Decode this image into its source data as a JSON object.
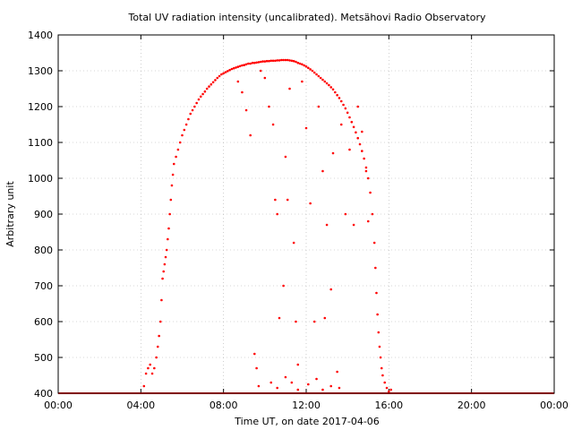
{
  "chart_data": {
    "type": "scatter",
    "title": "Total UV radiation intensity (uncalibrated). Metsähovi Radio Observatory",
    "xlabel": "Time UT, on date 2017-04-06",
    "ylabel": "Arbitrary unit",
    "xlim": [
      0,
      24
    ],
    "ylim": [
      400,
      1400
    ],
    "grid": true,
    "series_color": "#ff0000",
    "x_ticks": [
      {
        "value": 0,
        "label": "00:00"
      },
      {
        "value": 4,
        "label": "04:00"
      },
      {
        "value": 8,
        "label": "08:00"
      },
      {
        "value": 12,
        "label": "12:00"
      },
      {
        "value": 16,
        "label": "16:00"
      },
      {
        "value": 20,
        "label": "20:00"
      },
      {
        "value": 24,
        "label": "00:00"
      }
    ],
    "y_ticks": [
      {
        "value": 400,
        "label": "400"
      },
      {
        "value": 500,
        "label": "500"
      },
      {
        "value": 600,
        "label": "600"
      },
      {
        "value": 700,
        "label": "700"
      },
      {
        "value": 800,
        "label": "800"
      },
      {
        "value": 900,
        "label": "900"
      },
      {
        "value": 1000,
        "label": "1000"
      },
      {
        "value": 1100,
        "label": "1100"
      },
      {
        "value": 1200,
        "label": "1200"
      },
      {
        "value": 1300,
        "label": "1300"
      },
      {
        "value": 1400,
        "label": "1400"
      }
    ],
    "baseline": {
      "value": 400,
      "from": 0,
      "to": 24
    },
    "points": [
      [
        4.15,
        420
      ],
      [
        4.25,
        455
      ],
      [
        4.35,
        470
      ],
      [
        4.45,
        480
      ],
      [
        4.55,
        455
      ],
      [
        4.65,
        470
      ],
      [
        4.75,
        500
      ],
      [
        4.82,
        530
      ],
      [
        4.88,
        560
      ],
      [
        4.95,
        600
      ],
      [
        5.0,
        660
      ],
      [
        5.05,
        720
      ],
      [
        5.1,
        740
      ],
      [
        5.15,
        760
      ],
      [
        5.2,
        780
      ],
      [
        5.25,
        800
      ],
      [
        5.3,
        830
      ],
      [
        5.35,
        860
      ],
      [
        5.4,
        900
      ],
      [
        5.45,
        940
      ],
      [
        5.5,
        980
      ],
      [
        5.55,
        1010
      ],
      [
        5.6,
        1040
      ],
      [
        5.7,
        1060
      ],
      [
        5.8,
        1080
      ],
      [
        5.9,
        1100
      ],
      [
        6.0,
        1120
      ],
      [
        6.1,
        1135
      ],
      [
        6.2,
        1150
      ],
      [
        6.3,
        1165
      ],
      [
        6.4,
        1180
      ],
      [
        6.5,
        1190
      ],
      [
        6.6,
        1200
      ],
      [
        6.7,
        1210
      ],
      [
        6.8,
        1220
      ],
      [
        6.9,
        1228
      ],
      [
        7.0,
        1235
      ],
      [
        7.1,
        1242
      ],
      [
        7.2,
        1250
      ],
      [
        7.3,
        1256
      ],
      [
        7.4,
        1262
      ],
      [
        7.5,
        1268
      ],
      [
        7.6,
        1274
      ],
      [
        7.7,
        1280
      ],
      [
        7.8,
        1285
      ],
      [
        7.9,
        1290
      ],
      [
        8.0,
        1293
      ],
      [
        8.1,
        1296
      ],
      [
        8.2,
        1299
      ],
      [
        8.3,
        1302
      ],
      [
        8.4,
        1305
      ],
      [
        8.5,
        1307
      ],
      [
        8.6,
        1309
      ],
      [
        8.7,
        1311
      ],
      [
        8.8,
        1313
      ],
      [
        8.9,
        1315
      ],
      [
        9.0,
        1316
      ],
      [
        9.1,
        1318
      ],
      [
        9.2,
        1320
      ],
      [
        9.3,
        1320
      ],
      [
        9.4,
        1322
      ],
      [
        9.5,
        1322
      ],
      [
        9.6,
        1323
      ],
      [
        9.7,
        1324
      ],
      [
        9.8,
        1325
      ],
      [
        9.9,
        1326
      ],
      [
        10.0,
        1326
      ],
      [
        10.1,
        1327
      ],
      [
        10.2,
        1327
      ],
      [
        10.3,
        1328
      ],
      [
        10.4,
        1328
      ],
      [
        10.5,
        1328
      ],
      [
        10.6,
        1329
      ],
      [
        10.7,
        1329
      ],
      [
        10.8,
        1330
      ],
      [
        10.9,
        1330
      ],
      [
        11.0,
        1330
      ],
      [
        11.1,
        1330
      ],
      [
        11.2,
        1329
      ],
      [
        11.3,
        1328
      ],
      [
        11.4,
        1327
      ],
      [
        11.5,
        1325
      ],
      [
        11.6,
        1322
      ],
      [
        11.7,
        1320
      ],
      [
        11.8,
        1318
      ],
      [
        11.9,
        1315
      ],
      [
        12.0,
        1312
      ],
      [
        12.1,
        1308
      ],
      [
        12.2,
        1304
      ],
      [
        12.3,
        1300
      ],
      [
        12.4,
        1295
      ],
      [
        12.5,
        1290
      ],
      [
        12.6,
        1285
      ],
      [
        12.7,
        1280
      ],
      [
        12.8,
        1275
      ],
      [
        12.9,
        1270
      ],
      [
        13.0,
        1265
      ],
      [
        13.1,
        1260
      ],
      [
        13.2,
        1254
      ],
      [
        13.3,
        1248
      ],
      [
        13.4,
        1240
      ],
      [
        13.5,
        1232
      ],
      [
        13.6,
        1224
      ],
      [
        13.7,
        1215
      ],
      [
        13.8,
        1205
      ],
      [
        13.9,
        1195
      ],
      [
        14.0,
        1183
      ],
      [
        14.1,
        1170
      ],
      [
        14.2,
        1157
      ],
      [
        14.3,
        1143
      ],
      [
        14.4,
        1128
      ],
      [
        14.5,
        1112
      ],
      [
        14.6,
        1095
      ],
      [
        14.7,
        1076
      ],
      [
        14.8,
        1055
      ],
      [
        14.9,
        1030
      ],
      [
        15.0,
        1000
      ],
      [
        15.1,
        960
      ],
      [
        15.2,
        900
      ],
      [
        15.3,
        820
      ],
      [
        15.35,
        750
      ],
      [
        15.4,
        680
      ],
      [
        15.45,
        620
      ],
      [
        15.5,
        570
      ],
      [
        15.55,
        530
      ],
      [
        15.6,
        500
      ],
      [
        15.65,
        470
      ],
      [
        15.7,
        450
      ],
      [
        15.8,
        430
      ],
      [
        15.9,
        415
      ],
      [
        16.0,
        405
      ],
      [
        16.1,
        410
      ],
      [
        8.7,
        1270
      ],
      [
        8.9,
        1240
      ],
      [
        9.1,
        1190
      ],
      [
        9.3,
        1120
      ],
      [
        9.5,
        510
      ],
      [
        9.6,
        470
      ],
      [
        9.8,
        1300
      ],
      [
        10.0,
        1280
      ],
      [
        10.2,
        1200
      ],
      [
        10.4,
        1150
      ],
      [
        10.5,
        940
      ],
      [
        10.6,
        900
      ],
      [
        10.7,
        610
      ],
      [
        10.9,
        700
      ],
      [
        11.0,
        1060
      ],
      [
        11.1,
        940
      ],
      [
        11.2,
        1250
      ],
      [
        11.4,
        820
      ],
      [
        11.5,
        600
      ],
      [
        11.6,
        480
      ],
      [
        11.8,
        1270
      ],
      [
        12.0,
        1140
      ],
      [
        12.2,
        930
      ],
      [
        12.4,
        600
      ],
      [
        12.6,
        1200
      ],
      [
        12.8,
        1020
      ],
      [
        12.9,
        610
      ],
      [
        13.0,
        870
      ],
      [
        13.2,
        690
      ],
      [
        13.3,
        1070
      ],
      [
        13.5,
        460
      ],
      [
        13.7,
        1150
      ],
      [
        13.9,
        900
      ],
      [
        14.1,
        1080
      ],
      [
        14.3,
        870
      ],
      [
        14.5,
        1200
      ],
      [
        14.7,
        1130
      ],
      [
        14.9,
        1020
      ],
      [
        15.0,
        880
      ],
      [
        9.7,
        420
      ],
      [
        10.3,
        430
      ],
      [
        10.6,
        415
      ],
      [
        11.0,
        445
      ],
      [
        11.3,
        430
      ],
      [
        11.6,
        410
      ],
      [
        12.1,
        425
      ],
      [
        12.5,
        440
      ],
      [
        12.8,
        410
      ],
      [
        13.2,
        420
      ],
      [
        13.6,
        415
      ]
    ]
  }
}
